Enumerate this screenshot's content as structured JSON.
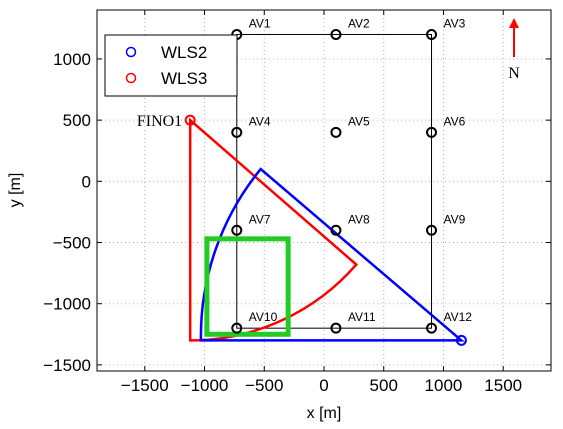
{
  "chart_data": {
    "type": "scatter",
    "xlabel": "x [m]",
    "ylabel": "y [m]",
    "xlim": [
      -1900,
      1900
    ],
    "ylim": [
      -1550,
      1400
    ],
    "xticks": [
      -1500,
      -1000,
      -500,
      0,
      500,
      1000,
      1500
    ],
    "xtick_labels": [
      "−1500",
      "−1000",
      "−500",
      "0",
      "500",
      "1000",
      "1500"
    ],
    "yticks": [
      -1500,
      -1000,
      -500,
      0,
      500,
      1000
    ],
    "ytick_labels": [
      "−1500",
      "−1000",
      "−500",
      "0",
      "500",
      "1000"
    ],
    "grid": true,
    "legend_position": "top-left",
    "series": [
      {
        "name": "WLS2",
        "color": "#0000ff",
        "marker": "circle",
        "point": [
          1150,
          -1300
        ],
        "sector": {
          "x": [
            1150,
            -530,
            -530,
            -1030,
            -1030,
            1150
          ],
          "y": [
            -1300,
            100,
            100,
            -1300,
            -1300,
            -1300
          ],
          "arc_from": [
            -530,
            100
          ],
          "arc_to": [
            -1030,
            -1300
          ]
        }
      },
      {
        "name": "WLS3",
        "color": "#ff0000",
        "marker": "circle",
        "point": [
          -1120,
          500
        ],
        "sector": {
          "apex": [
            -1120,
            500
          ],
          "ray_end": [
            270,
            -680
          ],
          "arc_to": [
            -1100,
            -1300
          ],
          "close_to": [
            -1120,
            -1300
          ]
        }
      }
    ],
    "grid_points": {
      "color": "#000000",
      "labels": [
        "AV1",
        "AV2",
        "AV3",
        "AV4",
        "AV5",
        "AV6",
        "AV7",
        "AV8",
        "AV9",
        "AV10",
        "AV11",
        "AV12"
      ],
      "x": [
        -730,
        100,
        900,
        -730,
        100,
        900,
        -730,
        100,
        900,
        -730,
        100,
        900
      ],
      "y": [
        1200,
        1200,
        1200,
        400,
        400,
        400,
        -400,
        -400,
        -400,
        -1200,
        -1200,
        -1200
      ]
    },
    "boundary_box": {
      "x": [
        -730,
        900
      ],
      "y": [
        -1200,
        1200
      ],
      "color": "#000000"
    },
    "highlight_box": {
      "x": [
        -980,
        -300
      ],
      "y": [
        -1250,
        -470
      ],
      "color": "#22cc22"
    },
    "annotations": [
      {
        "text": "FINO1",
        "x": -1120,
        "y": 500
      },
      {
        "text": "N",
        "x": 1510,
        "y": 1030
      }
    ]
  }
}
